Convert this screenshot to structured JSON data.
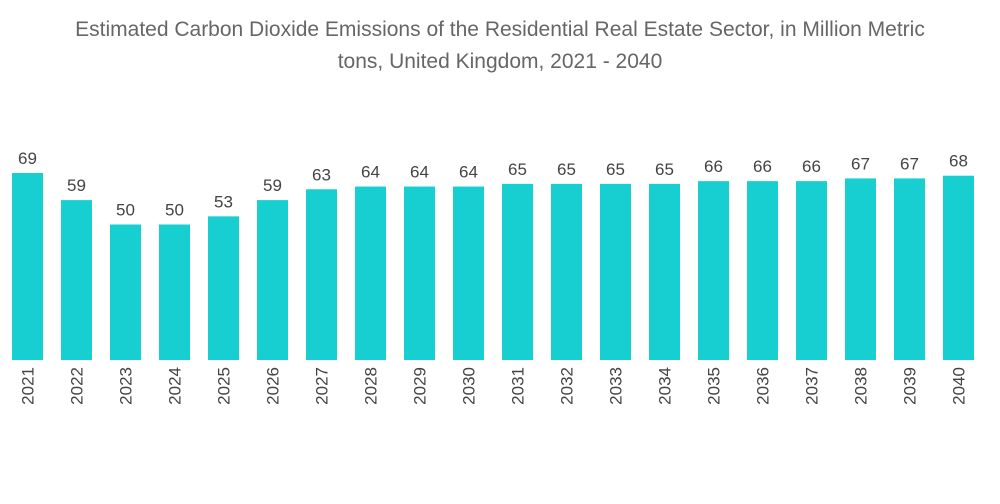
{
  "chart_data": {
    "type": "bar",
    "title_line1": "Estimated Carbon Dioxide Emissions of the Residential Real Estate Sector, in Million Metric",
    "title_line2": "tons, United Kingdom, 2021 - 2040",
    "categories": [
      "2021",
      "2022",
      "2023",
      "2024",
      "2025",
      "2026",
      "2027",
      "2028",
      "2029",
      "2030",
      "2031",
      "2032",
      "2033",
      "2034",
      "2035",
      "2036",
      "2037",
      "2038",
      "2039",
      "2040"
    ],
    "values": [
      69,
      59,
      50,
      50,
      53,
      59,
      63,
      64,
      64,
      64,
      65,
      65,
      65,
      65,
      66,
      66,
      66,
      67,
      67,
      68
    ],
    "xlabel": "",
    "ylabel": "",
    "ylim": [
      0,
      69
    ],
    "grid": false,
    "bar_color": "#17cfd1"
  }
}
